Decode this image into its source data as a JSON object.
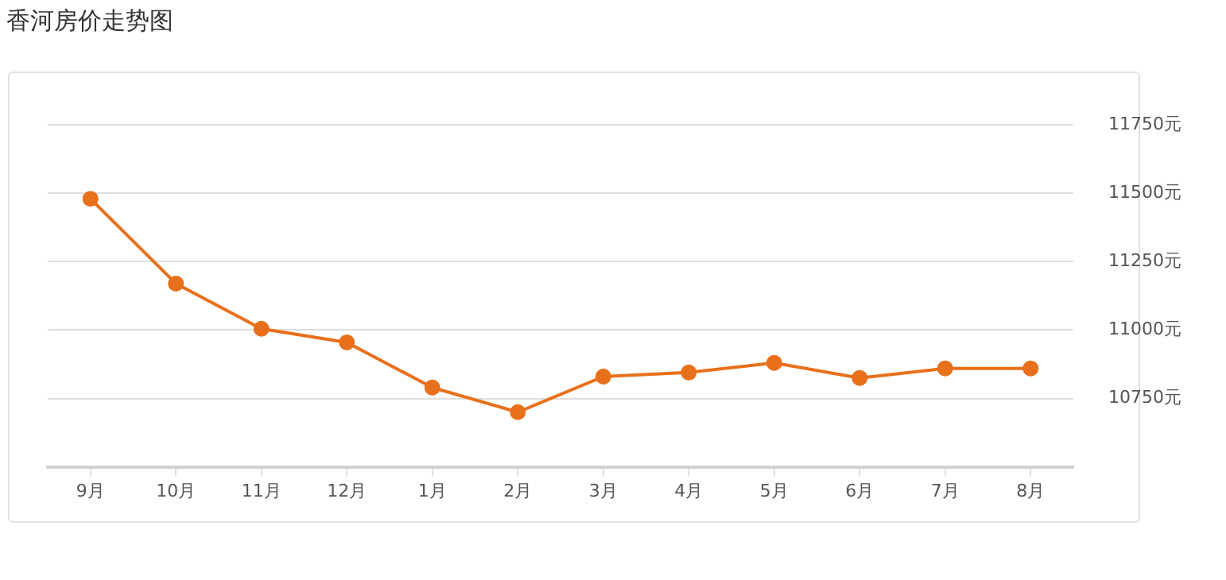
{
  "chart_data": {
    "type": "line",
    "title": "香河房价走势图",
    "categories": [
      "9月",
      "10月",
      "11月",
      "12月",
      "1月",
      "2月",
      "3月",
      "4月",
      "5月",
      "6月",
      "7月",
      "8月"
    ],
    "series": [
      {
        "color": "#e8701a",
        "values": [
          11480,
          11170,
          11005,
          10955,
          10790,
          10700,
          10830,
          10845,
          10880,
          10825,
          10860,
          10860
        ]
      }
    ],
    "ylim": [
      10500,
      11750
    ],
    "yticks": [
      {
        "value": 10750,
        "label": "10750元"
      },
      {
        "value": 11000,
        "label": "11000元"
      },
      {
        "value": 11250,
        "label": "11250元"
      },
      {
        "value": 11500,
        "label": "11500元"
      },
      {
        "value": 11750,
        "label": "11750元"
      }
    ],
    "grid": "y",
    "legend": false,
    "marker": "circle",
    "line_style": "solid"
  }
}
